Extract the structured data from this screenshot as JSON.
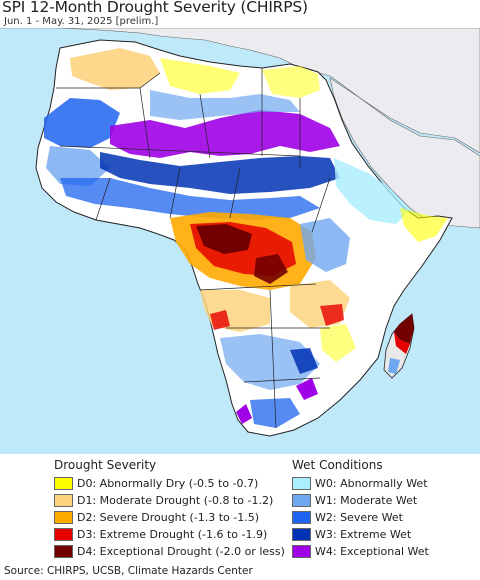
{
  "title": "SPI 12-Month Drought Severity (CHIRPS)",
  "subtitle": "Jun. 1 - May. 31, 2025 [prelim.]",
  "legend": {
    "drought_heading": "Drought Severity",
    "wet_heading": "Wet Conditions",
    "drought": [
      {
        "label": "D0: Abnormally Dry (-0.5 to -0.7)",
        "color": "#ffff00"
      },
      {
        "label": "D1: Moderate Drought (-0.8 to -1.2)",
        "color": "#fcd37f"
      },
      {
        "label": "D2: Severe Drought (-1.3 to -1.5)",
        "color": "#ffaa00"
      },
      {
        "label": "D3: Extreme Drought (-1.6 to -1.9)",
        "color": "#e60000"
      },
      {
        "label": "D4: Exceptional Drought (-2.0 or less)",
        "color": "#730000"
      }
    ],
    "wet": [
      {
        "label": "W0: Abnormally Wet",
        "color": "#aaeeff"
      },
      {
        "label": "W1: Moderate Wet",
        "color": "#6fa8f0"
      },
      {
        "label": "W2: Severe Wet",
        "color": "#1e64f0"
      },
      {
        "label": "W3: Extreme Wet",
        "color": "#0032b4"
      },
      {
        "label": "W4: Exceptional Wet",
        "color": "#a000e6"
      }
    ]
  },
  "source": "Source: CHIRPS, UCSB, Climate Hazards Center",
  "colors": {
    "ocean": "#bfe8f8",
    "land_outside": "#ececf0",
    "land": "#ffffff",
    "borders": "#222222"
  }
}
